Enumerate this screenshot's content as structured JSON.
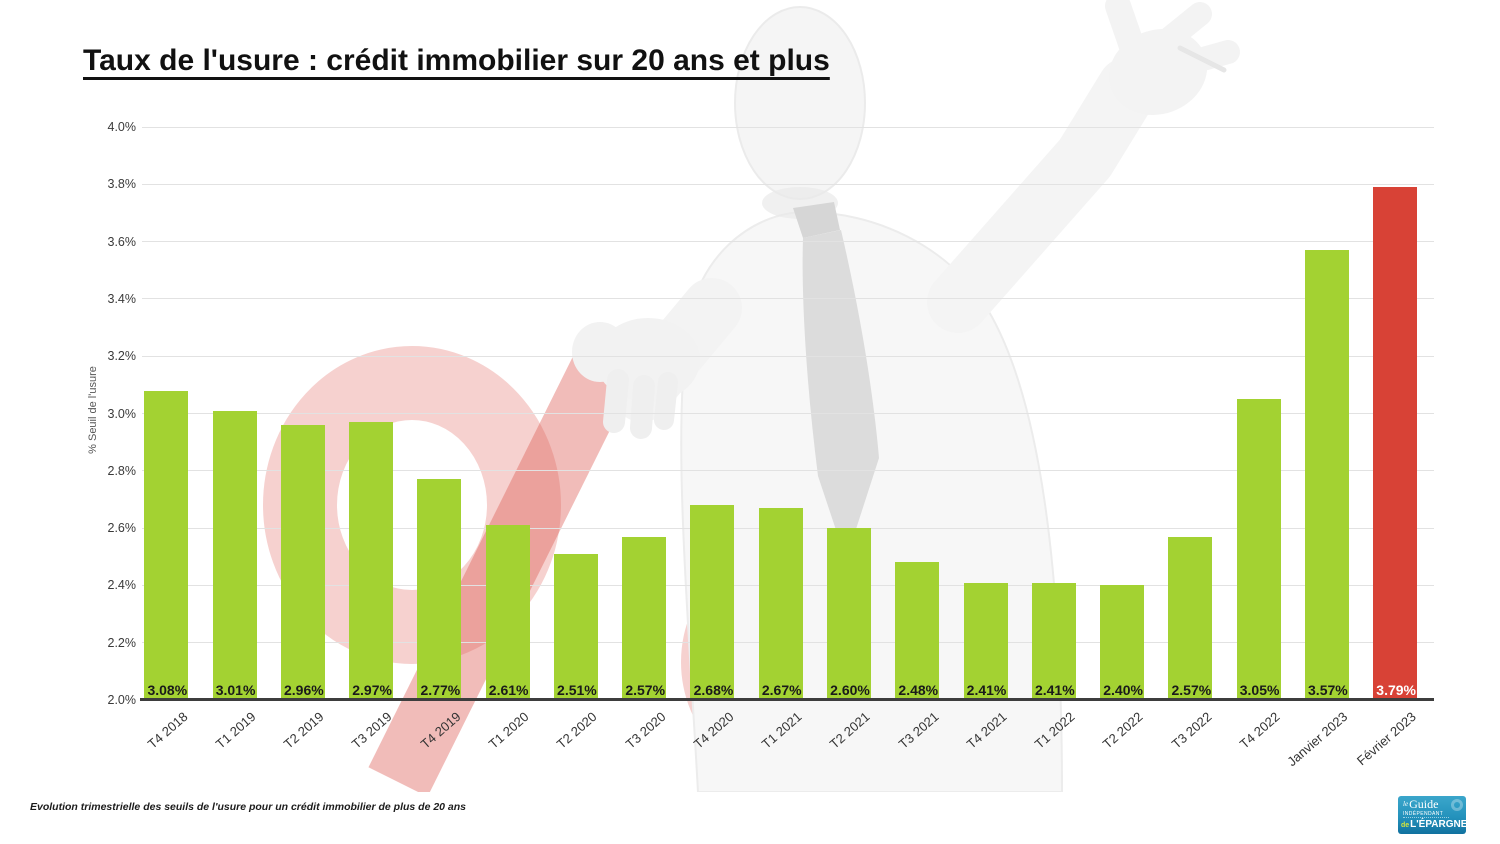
{
  "title": "Taux de l'usure : crédit immobilier sur 20 ans et plus",
  "footer": {
    "caption": "Evolution trimestrielle des seuils de l'usure pour un crédit immobilier de plus de 20 ans"
  },
  "logo": {
    "line1_prefix": "le",
    "line1": "Guide",
    "line2": "INDÉPENDANT",
    "line3_prefix": "de",
    "line3": "L'ÉPARGNE"
  },
  "watermark": {
    "percent_sign_color": "#dd5a52",
    "figure_color": "#f5f5f5",
    "tie_color": "#dcdcdc"
  },
  "chart_data": {
    "type": "bar",
    "title": "Taux de l'usure : crédit immobilier sur 20 ans et plus",
    "xlabel": "",
    "ylabel": "% Seuil de l'usure",
    "ylim": [
      2.0,
      4.0
    ],
    "ytick_step": 0.2,
    "yticks": [
      "4.0%",
      "3.8%",
      "3.6%",
      "3.4%",
      "3.2%",
      "3.0%",
      "2.8%",
      "2.6%",
      "2.4%",
      "2.2%",
      "2.0%"
    ],
    "grid": true,
    "legend": "none",
    "categories": [
      "T4 2018",
      "T1 2019",
      "T2 2019",
      "T3 2019",
      "T4 2019",
      "T1 2020",
      "T2 2020",
      "T3 2020",
      "T4 2020",
      "T1 2021",
      "T2 2021",
      "T3 2021",
      "T4 2021",
      "T1 2022",
      "T2 2022",
      "T3 2022",
      "T4 2022",
      "Janvier 2023",
      "Février 2023"
    ],
    "values": [
      3.08,
      3.01,
      2.96,
      2.97,
      2.77,
      2.61,
      2.51,
      2.57,
      2.68,
      2.67,
      2.6,
      2.48,
      2.41,
      2.41,
      2.4,
      2.57,
      3.05,
      3.57,
      3.79
    ],
    "value_labels": [
      "3.08%",
      "3.01%",
      "2.96%",
      "2.97%",
      "2.77%",
      "2.61%",
      "2.51%",
      "2.57%",
      "2.68%",
      "2.67%",
      "2.60%",
      "2.48%",
      "2.41%",
      "2.41%",
      "2.40%",
      "2.57%",
      "3.05%",
      "3.57%",
      "3.79%"
    ],
    "bar_color_default": "#a3d232",
    "bar_color_highlight": "#d84236",
    "highlight_index": 18,
    "value_label_color_default": "#1a1a1a",
    "value_label_color_highlight": "#ffffff"
  }
}
